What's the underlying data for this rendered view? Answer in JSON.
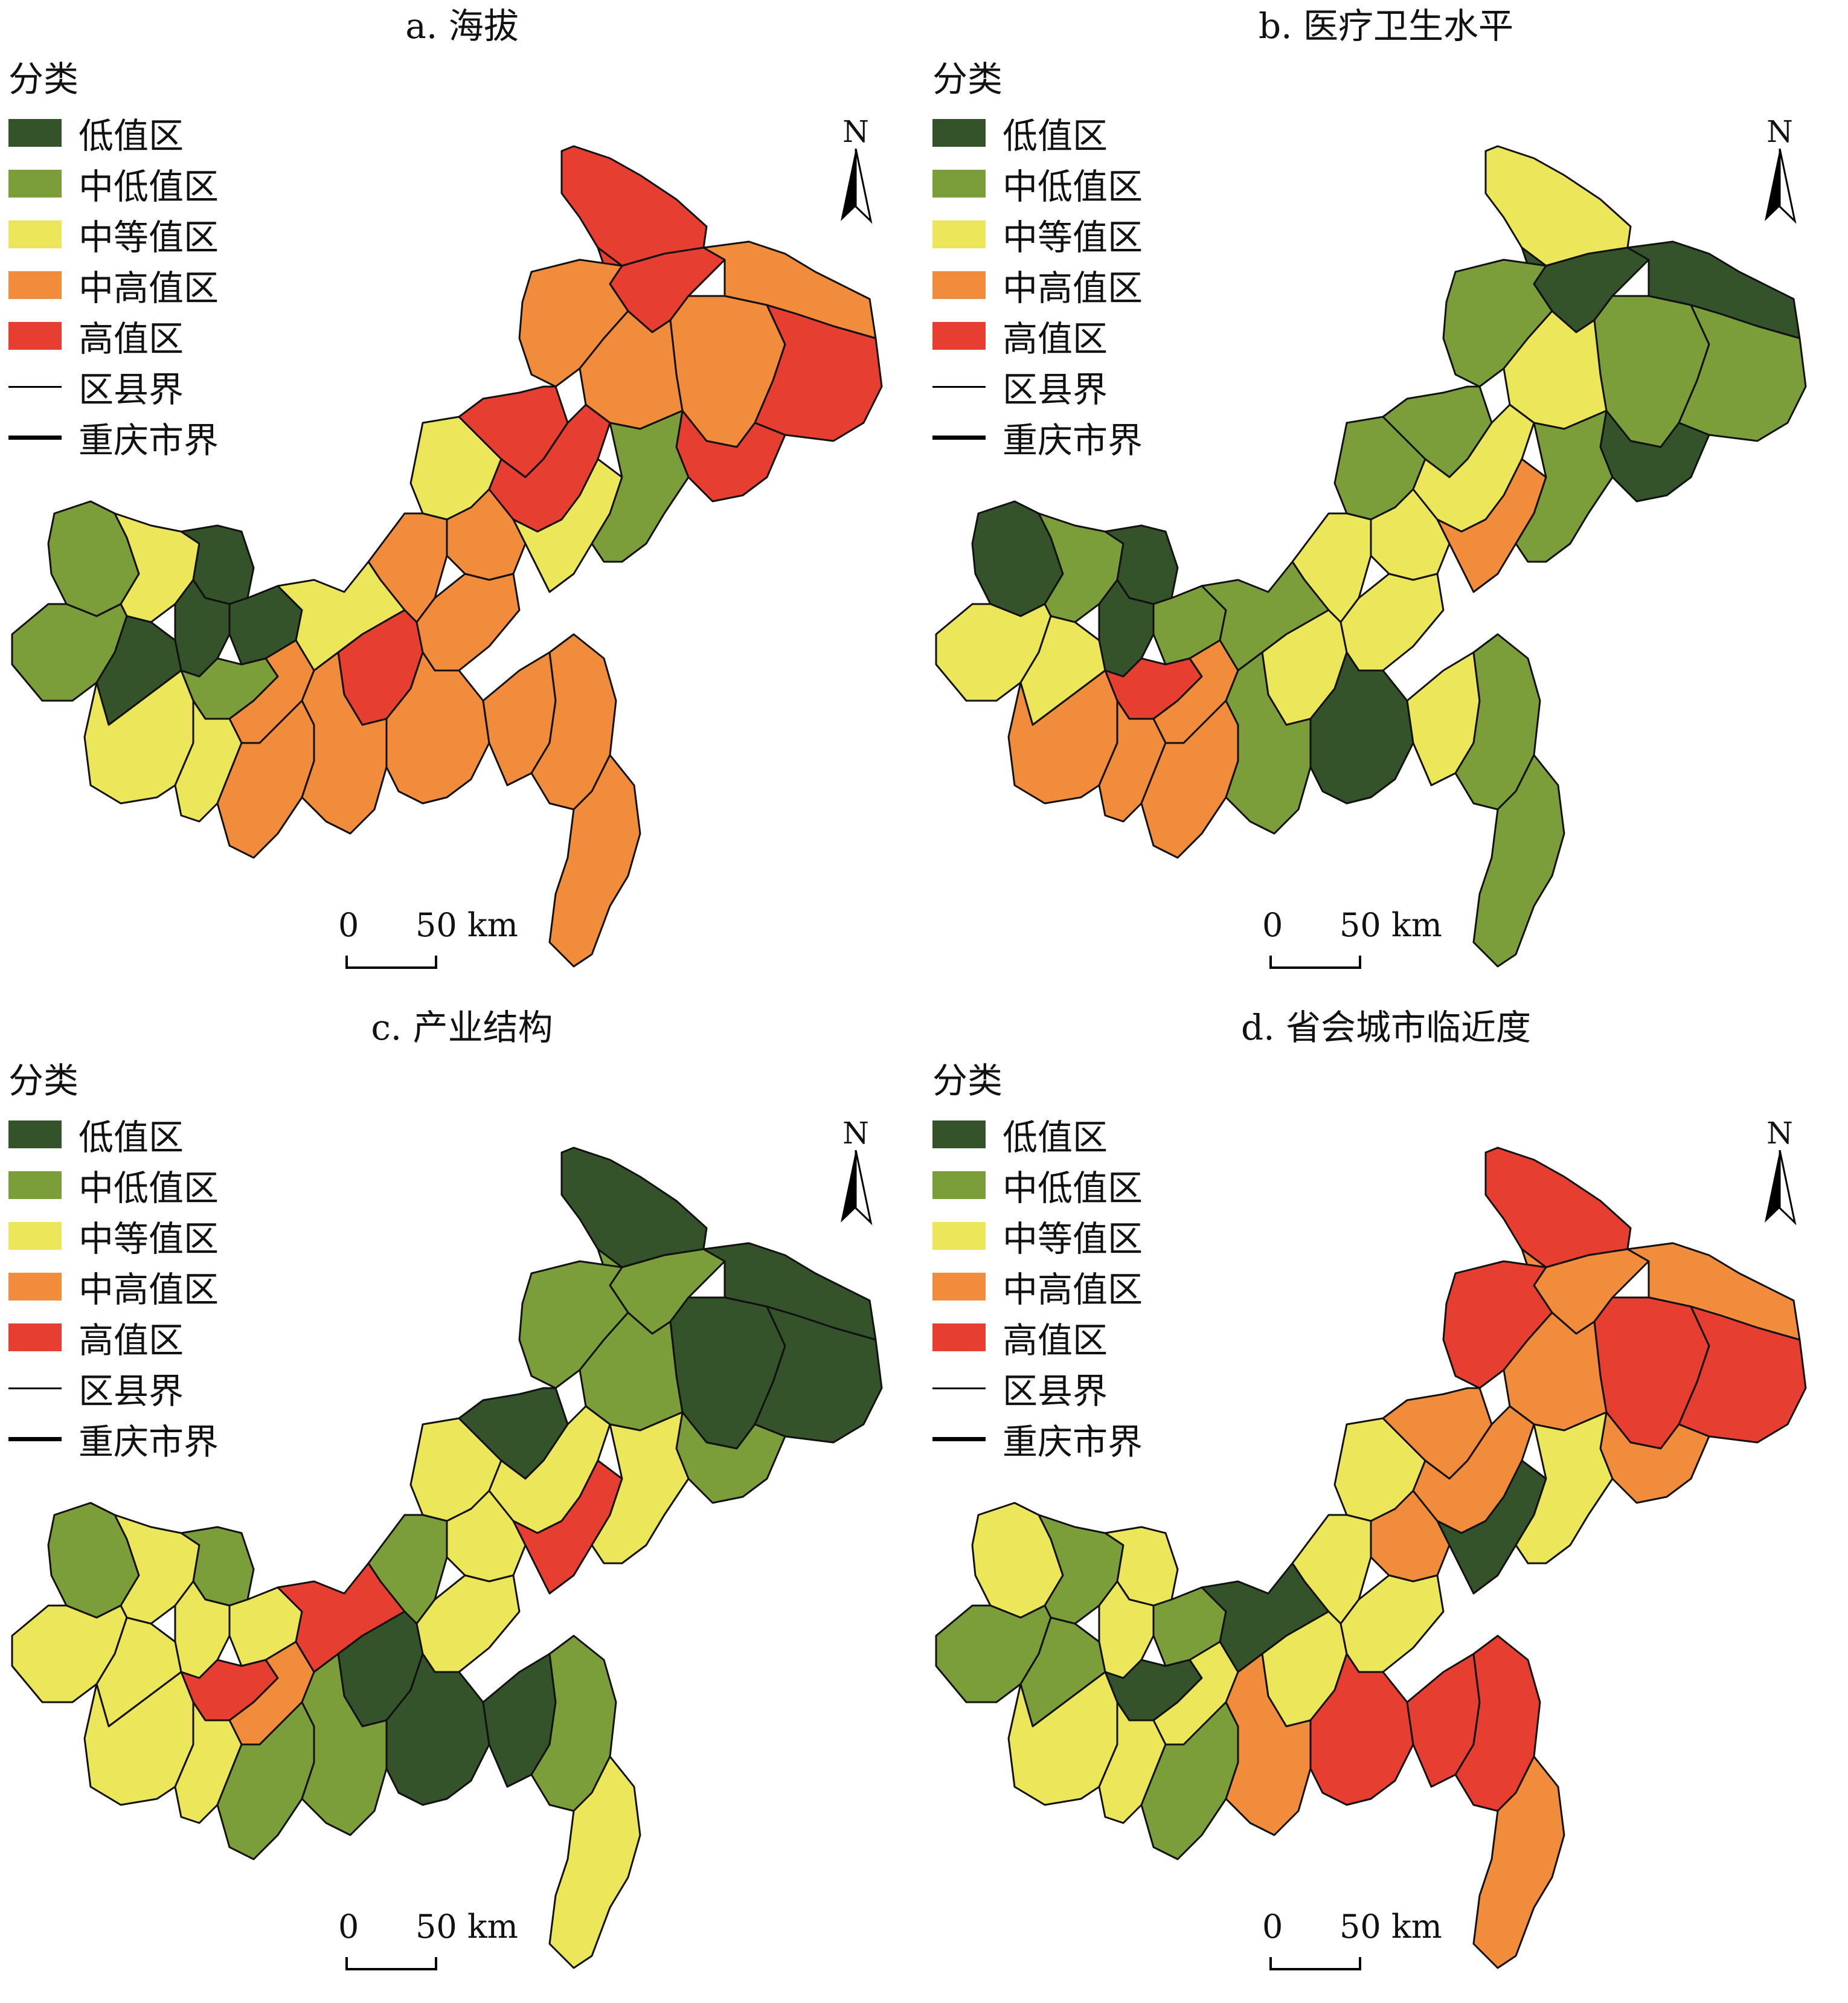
{
  "legend": {
    "heading": "分类",
    "classes": [
      {
        "label": "低值区",
        "color": "#34532b"
      },
      {
        "label": "中低值区",
        "color": "#7b9e3b"
      },
      {
        "label": "中等值区",
        "color": "#ece75a"
      },
      {
        "label": "中高值区",
        "color": "#f08c3b"
      },
      {
        "label": "高值区",
        "color": "#e63e31"
      }
    ],
    "county_boundary": "区县界",
    "city_boundary": "重庆市界"
  },
  "north_label": "N",
  "scale": {
    "zero": "0",
    "fifty": "50 km"
  },
  "panels": [
    {
      "title": "a. 海拔",
      "regions": [
        4,
        4,
        3,
        3,
        4,
        3,
        3,
        4,
        2,
        4,
        3,
        3,
        4,
        2,
        1,
        1,
        2,
        0,
        0,
        0,
        1,
        0,
        1,
        2,
        3,
        4,
        3,
        2,
        2,
        3,
        3,
        3,
        3,
        3,
        3
      ]
    },
    {
      "title": "b. 医疗卫生水平",
      "regions": [
        2,
        0,
        0,
        1,
        1,
        1,
        2,
        0,
        1,
        1,
        2,
        2,
        2,
        3,
        1,
        0,
        1,
        0,
        0,
        1,
        2,
        2,
        4,
        1,
        3,
        2,
        2,
        3,
        3,
        3,
        1,
        0,
        2,
        1,
        1
      ]
    },
    {
      "title": "c. 产业结构",
      "regions": [
        0,
        1,
        0,
        0,
        0,
        1,
        1,
        1,
        2,
        0,
        1,
        2,
        2,
        4,
        2,
        1,
        2,
        1,
        2,
        2,
        2,
        2,
        4,
        4,
        3,
        0,
        2,
        2,
        2,
        1,
        1,
        0,
        0,
        1,
        2
      ]
    },
    {
      "title": "d. 省会城市临近度",
      "regions": [
        4,
        3,
        3,
        4,
        4,
        4,
        3,
        3,
        2,
        3,
        2,
        3,
        3,
        0,
        2,
        2,
        1,
        2,
        2,
        1,
        1,
        1,
        0,
        0,
        2,
        2,
        2,
        2,
        2,
        1,
        3,
        4,
        4,
        4,
        3
      ]
    }
  ]
}
